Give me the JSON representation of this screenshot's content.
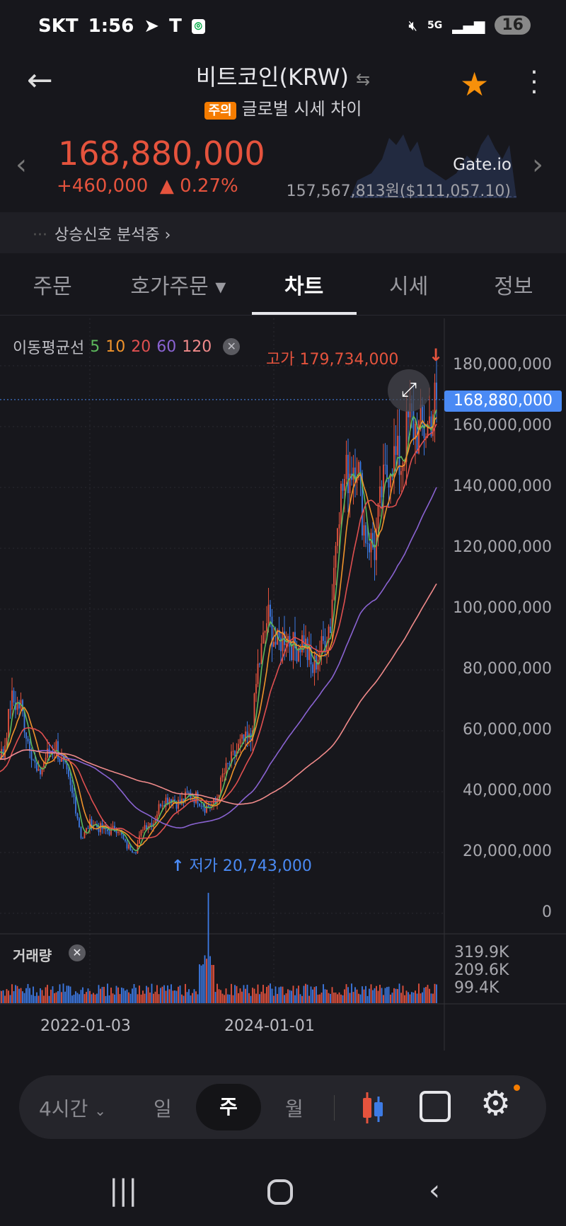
{
  "status_bar": {
    "carrier": "SKT",
    "time": "1:56",
    "network": "5G",
    "battery": "16"
  },
  "header": {
    "title": "비트코인(KRW)",
    "warning_badge": "주의",
    "warning_text": "글로벌 시세 차이",
    "favorite": true
  },
  "price": {
    "current": "168,880,000",
    "change": "+460,000",
    "change_pct": "▲ 0.27%",
    "exchange": "Gate.io",
    "global_price": "157,567,813원($111,057.10)"
  },
  "signal": {
    "text": "상승신호 분석중"
  },
  "tabs": [
    {
      "label": "주문"
    },
    {
      "label": "호가주문 ▾"
    },
    {
      "label": "차트",
      "active": true
    },
    {
      "label": "시세"
    },
    {
      "label": "정보"
    }
  ],
  "chart": {
    "ma_label": "이동평균선",
    "ma": [
      {
        "n": "5",
        "color": "#5cb85c"
      },
      {
        "n": "10",
        "color": "#f0932b"
      },
      {
        "n": "20",
        "color": "#e05050"
      },
      {
        "n": "60",
        "color": "#8a63d2"
      },
      {
        "n": "120",
        "color": "#f08a8a"
      }
    ],
    "high_label": "고가 179,734,000",
    "low_label": "저가 20,743,000",
    "current_label": "168,880,000",
    "volume_label": "거래량",
    "volume_ticks": [
      "319.9K",
      "209.6K",
      "99.4K"
    ],
    "up_color": "#e5533d",
    "down_color": "#3d7be5"
  },
  "chart_data": {
    "type": "candlestick",
    "interval": "주",
    "y_ticks": [
      "180,000,000",
      "160,000,000",
      "140,000,000",
      "120,000,000",
      "100,000,000",
      "80,000,000",
      "60,000,000",
      "40,000,000",
      "20,000,000",
      "0"
    ],
    "ylim": [
      0,
      180000000
    ],
    "x_ticks": [
      "2022-01-03",
      "2024-01-01"
    ],
    "monthly_close_millions": [
      40,
      55,
      65,
      70,
      45,
      40,
      45,
      55,
      52,
      70,
      68,
      56,
      45,
      52,
      55,
      47,
      38,
      25,
      30,
      28,
      27,
      28,
      22,
      21,
      29,
      30,
      37,
      38,
      36,
      39,
      38,
      35,
      36,
      46,
      51,
      56,
      57,
      83,
      97,
      88,
      92,
      87,
      90,
      80,
      87,
      95,
      135,
      145,
      150,
      125,
      120,
      140,
      150,
      148,
      162,
      158,
      160,
      168.88
    ]
  },
  "toolbar": {
    "interval": "4시간",
    "day": "일",
    "week": "주",
    "month": "월",
    "active": "주"
  }
}
